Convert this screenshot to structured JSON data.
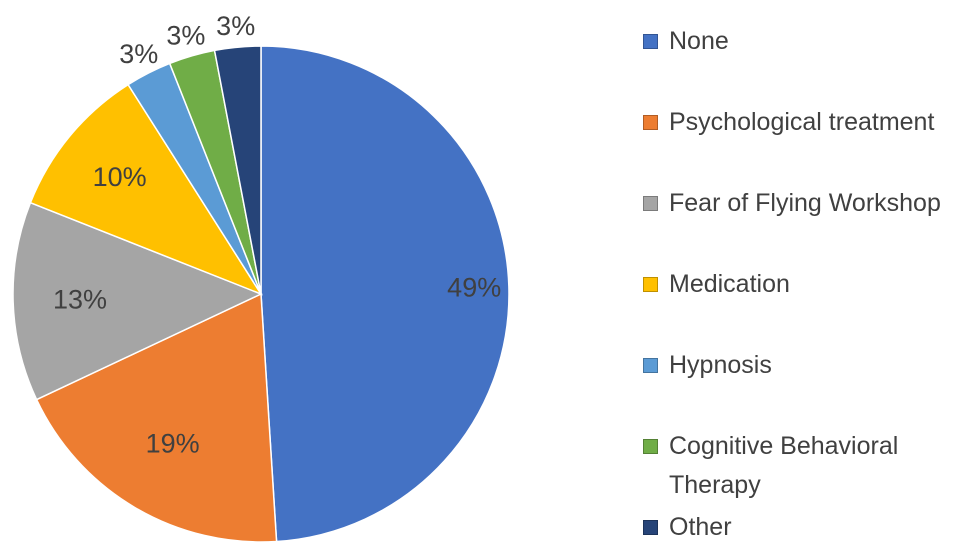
{
  "chart_data": {
    "type": "pie",
    "title": "",
    "slices": [
      {
        "name": "None",
        "value": 49,
        "label": "49%",
        "color": "#4472C4"
      },
      {
        "name": "Psychological treatment",
        "value": 19,
        "label": "19%",
        "color": "#ED7D31"
      },
      {
        "name": "Fear of Flying Workshop",
        "value": 13,
        "label": "13%",
        "color": "#A5A5A5"
      },
      {
        "name": "Medication",
        "value": 10,
        "label": "10%",
        "color": "#FFC000"
      },
      {
        "name": "Hypnosis",
        "value": 3,
        "label": "3%",
        "color": "#5B9BD5"
      },
      {
        "name": "Cognitive Behavioral Therapy",
        "value": 3,
        "label": "3%",
        "color": "#70AD47"
      },
      {
        "name": "Other",
        "value": 3,
        "label": "3%",
        "color": "#264478"
      }
    ],
    "legend_position": "right",
    "start_angle": "top",
    "direction": "clockwise"
  },
  "legend": {
    "items": [
      {
        "lines": [
          "None"
        ]
      },
      {
        "lines": [
          "Psychological treatment"
        ]
      },
      {
        "lines": [
          "Fear of Flying Workshop"
        ]
      },
      {
        "lines": [
          "Medication"
        ]
      },
      {
        "lines": [
          "Hypnosis"
        ]
      },
      {
        "lines": [
          "Cognitive Behavioral",
          "Therapy"
        ]
      },
      {
        "lines": [
          "Other"
        ]
      }
    ]
  }
}
